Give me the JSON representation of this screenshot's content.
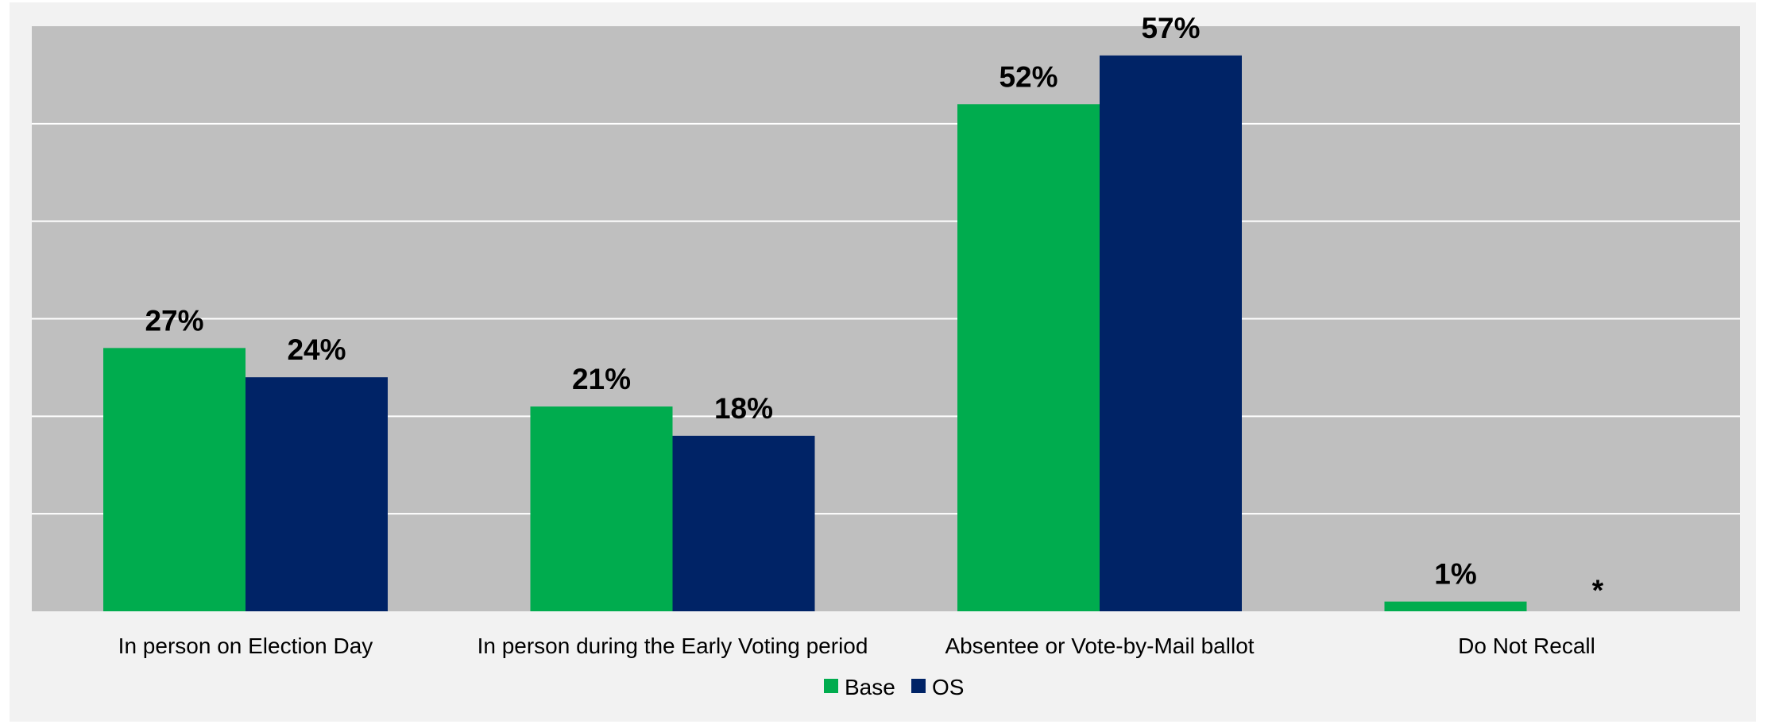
{
  "chart_data": {
    "type": "bar",
    "categories": [
      "In person on Election Day",
      "In person during the Early Voting period",
      "Absentee or Vote-by-Mail ballot",
      "Do Not Recall"
    ],
    "series": [
      {
        "name": "Base",
        "color": "#00AC4E",
        "values": [
          27,
          21,
          52,
          1
        ],
        "labels": [
          "27%",
          "21%",
          "52%",
          "1%"
        ]
      },
      {
        "name": "OS",
        "color": "#002366",
        "values": [
          24,
          18,
          57,
          0
        ],
        "labels": [
          "24%",
          "18%",
          "57%",
          "*"
        ]
      }
    ],
    "ylim": [
      0,
      60
    ],
    "gridlines": [
      10,
      20,
      30,
      40,
      50,
      60
    ],
    "grid": true,
    "legend": "bottom-center",
    "plot_background": "#BFBFBF",
    "chart_background": "#F2F2F2",
    "gridline_color": "#FFFFFF"
  }
}
